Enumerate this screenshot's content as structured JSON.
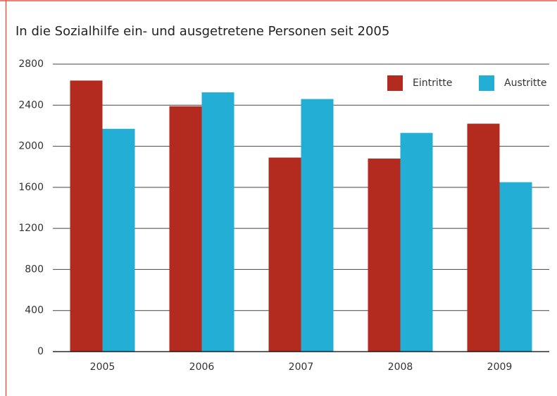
{
  "chart_data": {
    "type": "bar",
    "title": "In die Sozialhilfe ein- und ausgetretene Personen seit 2005",
    "categories": [
      "2005",
      "2006",
      "2007",
      "2008",
      "2009"
    ],
    "series": [
      {
        "name": "Eintritte",
        "color": "#b32a1f",
        "values": [
          2640,
          2390,
          1890,
          1880,
          2220
        ]
      },
      {
        "name": "Austritte",
        "color": "#23aed6",
        "values": [
          2170,
          2525,
          2460,
          2130,
          1650
        ]
      }
    ],
    "ylim": [
      0,
      2800
    ],
    "yticks": [
      0,
      400,
      800,
      1200,
      1600,
      2000,
      2400,
      2800
    ],
    "grid": true,
    "legend": "top-right"
  }
}
